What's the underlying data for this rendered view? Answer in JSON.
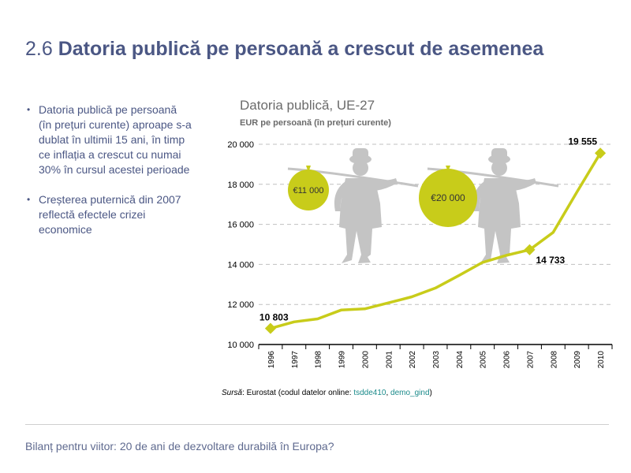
{
  "header": {
    "section_number": "2.6",
    "title": "Datoria publică pe persoană a crescut de asemenea"
  },
  "bullets": [
    "Datoria publică pe persoană (în prețuri curente) aproape s-a dublat în ultimii 15 ani, în timp ce inflația a crescut cu numai 30% în cursul acestei perioade",
    "Creșterea puternică din 2007 reflectă efectele crizei economice"
  ],
  "illustration": {
    "bag_left_label": "€11 000",
    "bag_right_label": "€20 000"
  },
  "chart_data": {
    "type": "line",
    "title": "Datoria publică, UE-27",
    "subtitle": "EUR pe persoană (în prețuri curente)",
    "x": [
      "1996",
      "1997",
      "1998",
      "1999",
      "2000",
      "2001",
      "2002",
      "2003",
      "2004",
      "2005",
      "2006",
      "2007",
      "2008",
      "2009",
      "2010"
    ],
    "values": [
      10803,
      11130,
      11280,
      11720,
      11780,
      12080,
      12380,
      12820,
      13450,
      14100,
      14450,
      14733,
      15600,
      17600,
      19555
    ],
    "ylim": [
      10000,
      20000
    ],
    "yticks": [
      10000,
      12000,
      14000,
      16000,
      18000,
      20000
    ],
    "ytick_labels": [
      "10 000",
      "12 000",
      "14 000",
      "16 000",
      "18 000",
      "20 000"
    ],
    "grid": true,
    "line_color": "#c8cc1a",
    "highlight_points": [
      {
        "x": "1996",
        "value": 10803,
        "label": "10 803"
      },
      {
        "x": "2007",
        "value": 14733,
        "label": "14 733"
      },
      {
        "x": "2010",
        "value": 19555,
        "label": "19 555"
      }
    ]
  },
  "source": {
    "label": "Sursă",
    "text": ": Eurostat (codul datelor online: ",
    "code1": "tsdde410",
    "sep": ", ",
    "code2": "demo_gind",
    "close": ")"
  },
  "footer": {
    "text": "Bilanț pentru viitor: 20 de ani de dezvoltare durabilă în Europa?"
  },
  "colors": {
    "title": "#4b5784",
    "accent": "#c8cc1a",
    "figure": "#c4c4c4",
    "grid": "#c0c0c0"
  }
}
